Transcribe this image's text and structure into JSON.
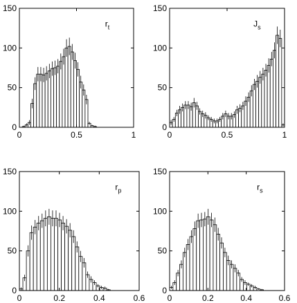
{
  "chart_data": [
    {
      "type": "bar",
      "label_main": "r",
      "label_sub": "t",
      "xlim": [
        0,
        1
      ],
      "ylim": [
        0,
        150
      ],
      "xticks": [
        "0",
        "0.5",
        "1"
      ],
      "yticks": [
        "0",
        "50",
        "100",
        "150"
      ],
      "bin_width": 0.025,
      "x": [
        0.0375,
        0.0625,
        0.0875,
        0.1125,
        0.1375,
        0.1625,
        0.1875,
        0.2125,
        0.2375,
        0.2625,
        0.2875,
        0.3125,
        0.3375,
        0.3625,
        0.3875,
        0.4125,
        0.4375,
        0.4625,
        0.4875,
        0.5125,
        0.5375,
        0.5625,
        0.5875,
        0.6125,
        0.6375,
        0.6625,
        0.6875
      ],
      "values": [
        1,
        3,
        6,
        30,
        55,
        67,
        67,
        66,
        68,
        71,
        74,
        75,
        77,
        83,
        89,
        100,
        102,
        95,
        84,
        73,
        57,
        47,
        35,
        5,
        2,
        1,
        0
      ],
      "errors": [
        1,
        2,
        3,
        6,
        8,
        9,
        9,
        9,
        9,
        9,
        9,
        9,
        9,
        10,
        10,
        11,
        11,
        10,
        10,
        9,
        8,
        7,
        6,
        2,
        1,
        1,
        0
      ]
    },
    {
      "type": "bar",
      "label_main": "J",
      "label_sub": "s",
      "xlim": [
        0,
        1
      ],
      "ylim": [
        0,
        150
      ],
      "xticks": [
        "0",
        "0.5",
        "1"
      ],
      "yticks": [
        "0",
        "50",
        "100",
        "150"
      ],
      "bin_width": 0.025,
      "x": [
        0.0125,
        0.0375,
        0.0625,
        0.0875,
        0.1125,
        0.1375,
        0.1625,
        0.1875,
        0.2125,
        0.2375,
        0.2625,
        0.2875,
        0.3125,
        0.3375,
        0.3625,
        0.3875,
        0.4125,
        0.4375,
        0.4625,
        0.4875,
        0.5125,
        0.5375,
        0.5625,
        0.5875,
        0.6125,
        0.6375,
        0.6625,
        0.6875,
        0.7125,
        0.7375,
        0.7625,
        0.7875,
        0.8125,
        0.8375,
        0.8625,
        0.8875,
        0.9125,
        0.9375,
        0.9625,
        0.9875
      ],
      "values": [
        6,
        10,
        18,
        22,
        25,
        28,
        28,
        26,
        31,
        27,
        20,
        17,
        15,
        12,
        10,
        8,
        8,
        10,
        14,
        17,
        14,
        14,
        16,
        22,
        24,
        27,
        33,
        38,
        46,
        54,
        58,
        63,
        67,
        72,
        78,
        86,
        97,
        116,
        112,
        3
      ],
      "errors": [
        3,
        3,
        4,
        5,
        5,
        5,
        5,
        5,
        6,
        5,
        4,
        4,
        4,
        3,
        3,
        3,
        3,
        3,
        4,
        4,
        4,
        4,
        4,
        5,
        5,
        5,
        6,
        6,
        7,
        7,
        8,
        8,
        8,
        8,
        9,
        9,
        10,
        11,
        11,
        2
      ]
    },
    {
      "type": "bar",
      "label_main": "r",
      "label_sub": "p",
      "xlim": [
        0,
        0.6
      ],
      "ylim": [
        0,
        150
      ],
      "xticks": [
        "0",
        "0.2",
        "0.4",
        "0.6"
      ],
      "yticks": [
        "0",
        "50",
        "100",
        "150"
      ],
      "bin_width": 0.0175,
      "x": [
        0.00875,
        0.02625,
        0.04375,
        0.06125,
        0.07875,
        0.09625,
        0.11375,
        0.13125,
        0.14875,
        0.16625,
        0.18375,
        0.20125,
        0.21875,
        0.23625,
        0.25375,
        0.27125,
        0.28875,
        0.30625,
        0.32375,
        0.34125,
        0.35875,
        0.37625,
        0.39375,
        0.41125,
        0.42875,
        0.44625,
        0.46375
      ],
      "values": [
        2,
        16,
        50,
        73,
        80,
        85,
        88,
        91,
        93,
        91,
        91,
        89,
        85,
        81,
        76,
        68,
        55,
        43,
        35,
        20,
        14,
        10,
        6,
        4,
        3,
        1,
        0
      ],
      "errors": [
        2,
        4,
        7,
        9,
        9,
        9,
        9,
        10,
        10,
        10,
        10,
        9,
        9,
        9,
        9,
        8,
        7,
        7,
        6,
        4,
        4,
        3,
        2,
        2,
        2,
        1,
        0
      ]
    },
    {
      "type": "bar",
      "label_main": "r",
      "label_sub": "s",
      "xlim": [
        0,
        0.6
      ],
      "ylim": [
        0,
        150
      ],
      "xticks": [
        "0",
        "0.2",
        "0.4",
        "0.6"
      ],
      "yticks": [
        "0",
        "50",
        "100",
        "150"
      ],
      "bin_width": 0.0175,
      "x": [
        0.00875,
        0.02625,
        0.04375,
        0.06125,
        0.07875,
        0.09625,
        0.11375,
        0.13125,
        0.14875,
        0.16625,
        0.18375,
        0.20125,
        0.21875,
        0.23625,
        0.25375,
        0.27125,
        0.28875,
        0.30625,
        0.32375,
        0.34125,
        0.35875,
        0.37625,
        0.39375,
        0.41125,
        0.42875,
        0.44625,
        0.46375,
        0.48125
      ],
      "values": [
        4,
        10,
        22,
        33,
        48,
        58,
        68,
        78,
        88,
        89,
        90,
        93,
        89,
        83,
        71,
        60,
        48,
        38,
        33,
        28,
        22,
        14,
        10,
        8,
        6,
        4,
        2,
        1
      ],
      "errors": [
        2,
        3,
        4,
        5,
        6,
        7,
        8,
        9,
        9,
        9,
        9,
        10,
        9,
        9,
        8,
        7,
        6,
        6,
        5,
        5,
        4,
        3,
        3,
        2,
        2,
        2,
        1,
        1
      ]
    }
  ]
}
